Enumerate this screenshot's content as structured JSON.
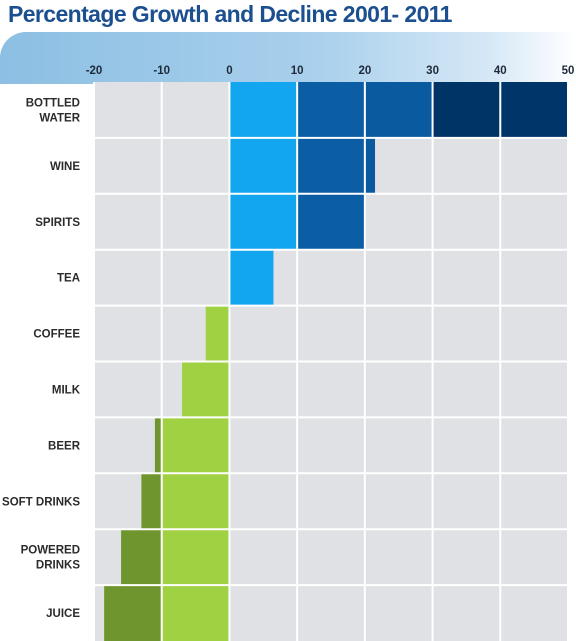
{
  "title": "Percentage Growth and Decline 2001- 2011",
  "colors": {
    "title": "#1b4f8f",
    "plot_bg": "#dfe1e5",
    "grid": "#ffffff",
    "growth_shades": [
      "#12a5f0",
      "#0b5da4",
      "#0a5aa0",
      "#003366",
      "#00356a"
    ],
    "decline_shades": [
      "#a0d143",
      "#6f952f"
    ]
  },
  "chart_data": {
    "type": "bar",
    "orientation": "horizontal",
    "title": "Percentage Growth and Decline 2001- 2011",
    "xlabel": "",
    "ylabel": "",
    "xlim": [
      -20,
      50
    ],
    "xticks": [
      "-20",
      "-10",
      "0",
      "10",
      "20",
      "30",
      "40",
      "50"
    ],
    "tick_values": [
      -20,
      -10,
      0,
      10,
      20,
      30,
      40,
      50
    ],
    "grid": true,
    "categories": [
      [
        "BOTTLED",
        "WATER"
      ],
      [
        "WINE"
      ],
      [
        "SPIRITS"
      ],
      [
        "TEA"
      ],
      [
        "COFFEE"
      ],
      [
        "MILK"
      ],
      [
        "BEER"
      ],
      [
        "SOFT DRINKS"
      ],
      [
        "POWERED",
        "DRINKS"
      ],
      [
        "JUICE"
      ]
    ],
    "values": [
      50,
      21.5,
      20,
      6.5,
      -3.5,
      -7,
      -11,
      -13,
      -16,
      -18.5
    ]
  }
}
